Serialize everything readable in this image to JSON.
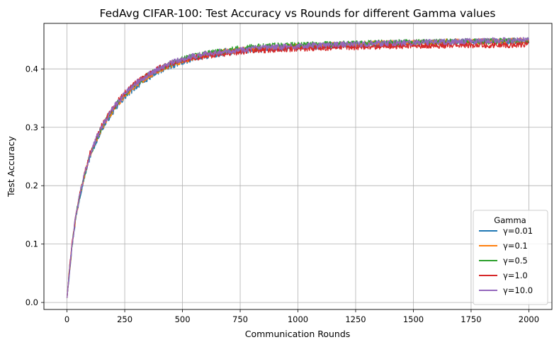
{
  "chart_data": {
    "type": "line",
    "title": "FedAvg CIFAR-100: Test Accuracy vs Rounds for different Gamma values",
    "xlabel": "Communication Rounds",
    "ylabel": "Test Accuracy",
    "xlim": [
      -100,
      2100
    ],
    "ylim": [
      -0.012,
      0.478
    ],
    "xticks": [
      0,
      250,
      500,
      750,
      1000,
      1250,
      1500,
      1750,
      2000
    ],
    "yticks": [
      0.0,
      0.1,
      0.2,
      0.3,
      0.4
    ],
    "xtick_labels": [
      "0",
      "250",
      "500",
      "750",
      "1000",
      "1250",
      "1500",
      "1750",
      "2000"
    ],
    "ytick_labels": [
      "0.0",
      "0.1",
      "0.2",
      "0.3",
      "0.4"
    ],
    "grid": true,
    "legend": {
      "title": "Gamma",
      "placement": "lower-right"
    },
    "x": [
      0,
      10,
      20,
      30,
      40,
      50,
      60,
      75,
      100,
      125,
      150,
      175,
      200,
      250,
      300,
      350,
      400,
      450,
      500,
      550,
      600,
      650,
      700,
      750,
      800,
      900,
      1000,
      1100,
      1200,
      1300,
      1400,
      1500,
      1600,
      1700,
      1800,
      1900,
      2000
    ],
    "series": [
      {
        "name": "γ=0.01",
        "color": "#1f77b4",
        "values": [
          0.008,
          0.05,
          0.09,
          0.122,
          0.148,
          0.17,
          0.19,
          0.215,
          0.25,
          0.275,
          0.296,
          0.313,
          0.327,
          0.352,
          0.37,
          0.384,
          0.396,
          0.405,
          0.412,
          0.418,
          0.422,
          0.425,
          0.428,
          0.43,
          0.432,
          0.435,
          0.437,
          0.439,
          0.441,
          0.442,
          0.443,
          0.444,
          0.445,
          0.446,
          0.447,
          0.447,
          0.448
        ]
      },
      {
        "name": "γ=0.1",
        "color": "#ff7f0e",
        "values": [
          0.008,
          0.052,
          0.092,
          0.124,
          0.15,
          0.172,
          0.192,
          0.217,
          0.252,
          0.277,
          0.298,
          0.315,
          0.33,
          0.355,
          0.373,
          0.387,
          0.398,
          0.407,
          0.414,
          0.42,
          0.424,
          0.427,
          0.43,
          0.432,
          0.434,
          0.437,
          0.439,
          0.441,
          0.442,
          0.443,
          0.444,
          0.445,
          0.446,
          0.447,
          0.447,
          0.448,
          0.448
        ]
      },
      {
        "name": "γ=0.5",
        "color": "#2ca02c",
        "values": [
          0.008,
          0.052,
          0.093,
          0.125,
          0.151,
          0.173,
          0.193,
          0.218,
          0.253,
          0.278,
          0.3,
          0.317,
          0.332,
          0.357,
          0.375,
          0.389,
          0.4,
          0.409,
          0.416,
          0.422,
          0.426,
          0.429,
          0.432,
          0.435,
          0.437,
          0.44,
          0.441,
          0.442,
          0.443,
          0.444,
          0.445,
          0.446,
          0.446,
          0.447,
          0.447,
          0.448,
          0.448
        ]
      },
      {
        "name": "γ=1.0",
        "color": "#d62728",
        "values": [
          0.008,
          0.053,
          0.094,
          0.126,
          0.152,
          0.174,
          0.194,
          0.219,
          0.255,
          0.28,
          0.302,
          0.319,
          0.334,
          0.359,
          0.377,
          0.39,
          0.401,
          0.409,
          0.415,
          0.419,
          0.422,
          0.425,
          0.427,
          0.429,
          0.431,
          0.433,
          0.435,
          0.436,
          0.437,
          0.438,
          0.439,
          0.44,
          0.44,
          0.441,
          0.441,
          0.441,
          0.442
        ]
      },
      {
        "name": "γ=10.0",
        "color": "#9467bd",
        "values": [
          0.008,
          0.052,
          0.093,
          0.125,
          0.151,
          0.173,
          0.193,
          0.218,
          0.254,
          0.279,
          0.301,
          0.318,
          0.333,
          0.358,
          0.376,
          0.39,
          0.401,
          0.41,
          0.417,
          0.422,
          0.426,
          0.429,
          0.431,
          0.433,
          0.435,
          0.437,
          0.439,
          0.441,
          0.442,
          0.443,
          0.444,
          0.445,
          0.446,
          0.447,
          0.448,
          0.449,
          0.449
        ]
      }
    ]
  }
}
